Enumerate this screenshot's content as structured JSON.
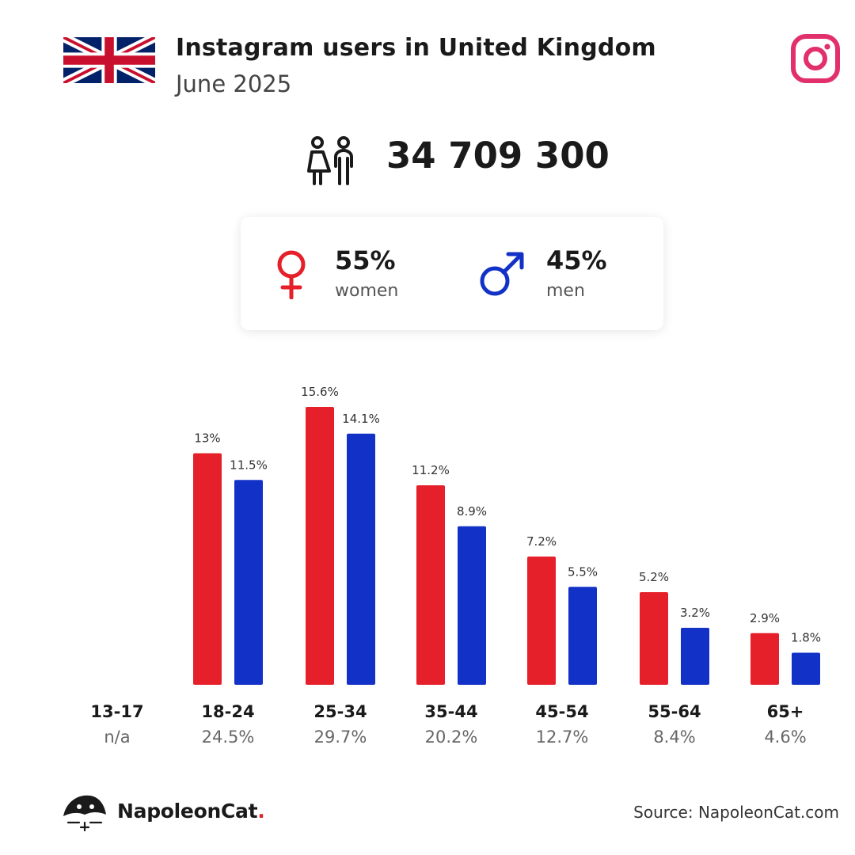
{
  "header": {
    "title": "Instagram users in United Kingdom",
    "subtitle": "June 2025",
    "flag_icon": "uk-flag-icon",
    "platform_icon": "instagram-icon"
  },
  "total": {
    "value": "34 709 300",
    "icon": "users-icon"
  },
  "gender": {
    "female": {
      "pct": "55%",
      "label": "women",
      "icon": "female-icon",
      "color": "#e5202a"
    },
    "male": {
      "pct": "45%",
      "label": "men",
      "icon": "male-icon",
      "color": "#1231c6"
    }
  },
  "chart_data": {
    "type": "bar",
    "categories": [
      "13-17",
      "18-24",
      "25-34",
      "35-44",
      "45-54",
      "55-64",
      "65+"
    ],
    "category_totals": [
      "n/a",
      "24.5%",
      "29.7%",
      "20.2%",
      "12.7%",
      "8.4%",
      "4.6%"
    ],
    "series": [
      {
        "color": "#e5202a",
        "values": [
          null,
          13,
          15.6,
          11.2,
          7.2,
          5.2,
          2.9
        ],
        "labels": [
          "",
          "13%",
          "15.6%",
          "11.2%",
          "7.2%",
          "5.2%",
          "2.9%"
        ]
      },
      {
        "color": "#1231c6",
        "values": [
          null,
          11.5,
          14.1,
          8.9,
          5.5,
          3.2,
          1.8
        ],
        "labels": [
          "",
          "11.5%",
          "14.1%",
          "8.9%",
          "5.5%",
          "3.2%",
          "1.8%"
        ]
      }
    ],
    "ylim": [
      0,
      15.6
    ],
    "grid": false,
    "legend": "none"
  },
  "footer": {
    "brand": "NapoleonCat",
    "brand_dot": ".",
    "source": "Source: NapoleonCat.com"
  }
}
